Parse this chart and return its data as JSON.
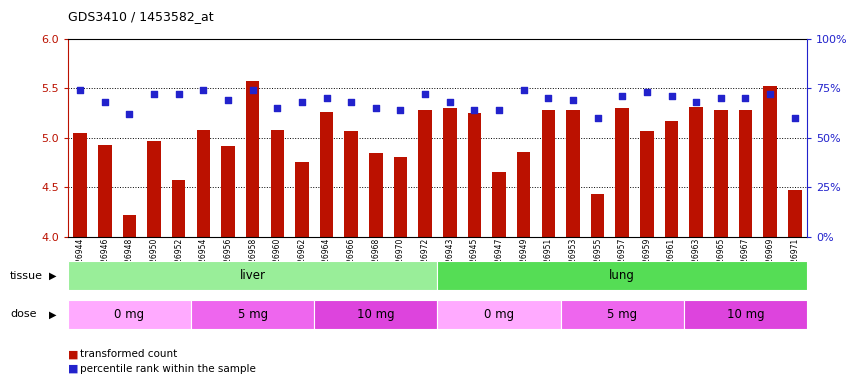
{
  "title": "GDS3410 / 1453582_at",
  "samples": [
    "GSM326944",
    "GSM326946",
    "GSM326948",
    "GSM326950",
    "GSM326952",
    "GSM326954",
    "GSM326956",
    "GSM326958",
    "GSM326960",
    "GSM326962",
    "GSM326964",
    "GSM326966",
    "GSM326968",
    "GSM326970",
    "GSM326972",
    "GSM326943",
    "GSM326945",
    "GSM326947",
    "GSM326949",
    "GSM326951",
    "GSM326953",
    "GSM326955",
    "GSM326957",
    "GSM326959",
    "GSM326961",
    "GSM326963",
    "GSM326965",
    "GSM326967",
    "GSM326969",
    "GSM326971"
  ],
  "transformed_count": [
    5.05,
    4.93,
    4.22,
    4.97,
    4.57,
    5.08,
    4.92,
    5.57,
    5.08,
    4.75,
    5.26,
    5.07,
    4.84,
    4.8,
    5.28,
    5.3,
    5.25,
    4.65,
    4.85,
    5.28,
    5.28,
    4.43,
    5.3,
    5.07,
    5.17,
    5.31,
    5.28,
    5.28,
    5.52,
    4.47
  ],
  "percentile_rank": [
    74,
    68,
    62,
    72,
    72,
    74,
    69,
    74,
    65,
    68,
    70,
    68,
    65,
    64,
    72,
    68,
    64,
    64,
    74,
    70,
    69,
    60,
    71,
    73,
    71,
    68,
    70,
    70,
    72,
    60
  ],
  "ylim_left": [
    4.0,
    6.0
  ],
  "ylim_right": [
    0,
    100
  ],
  "yticks_left": [
    4.0,
    4.5,
    5.0,
    5.5,
    6.0
  ],
  "yticks_right": [
    0,
    25,
    50,
    75,
    100
  ],
  "bar_color": "#bb1100",
  "dot_color": "#2222cc",
  "background_color": "#ffffff",
  "tissue_groups": [
    {
      "label": "liver",
      "start": 0,
      "end": 15,
      "color": "#99ee99"
    },
    {
      "label": "lung",
      "start": 15,
      "end": 30,
      "color": "#55dd55"
    }
  ],
  "dose_groups": [
    {
      "label": "0 mg",
      "start": 0,
      "end": 5,
      "color": "#ffaaff"
    },
    {
      "label": "5 mg",
      "start": 5,
      "end": 10,
      "color": "#ee66ee"
    },
    {
      "label": "10 mg",
      "start": 10,
      "end": 15,
      "color": "#dd44dd"
    },
    {
      "label": "0 mg",
      "start": 15,
      "end": 20,
      "color": "#ffaaff"
    },
    {
      "label": "5 mg",
      "start": 20,
      "end": 25,
      "color": "#ee66ee"
    },
    {
      "label": "10 mg",
      "start": 25,
      "end": 30,
      "color": "#dd44dd"
    }
  ]
}
